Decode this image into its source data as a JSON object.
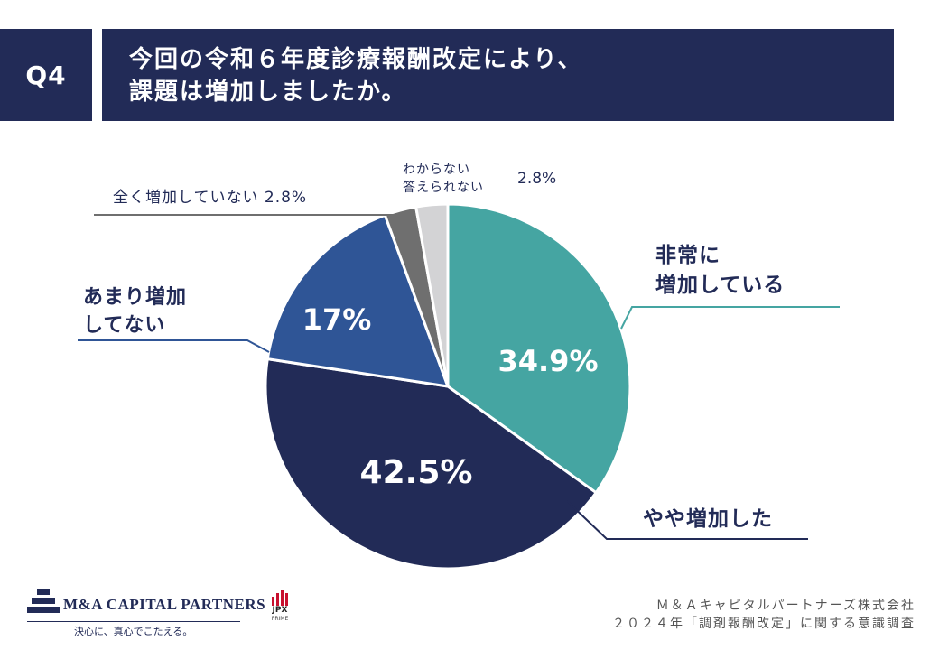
{
  "header": {
    "question_label": "Q4",
    "title_line1": "今回の令和６年度診療報酬改定により、",
    "title_line2": "課題は増加しましたか。"
  },
  "chart_data": {
    "type": "pie",
    "title": "今回の令和６年度診療報酬改定により、課題は増加しましたか。",
    "slices": [
      {
        "label": "非常に増加している",
        "label_lines": [
          "非常に",
          "増加している"
        ],
        "value": 34.9,
        "value_label": "34.9%",
        "color": "#45a5a2"
      },
      {
        "label": "やや増加した",
        "label_lines": [
          "やや増加した"
        ],
        "value": 42.5,
        "value_label": "42.5%",
        "color": "#222b57"
      },
      {
        "label": "あまり増加してない",
        "label_lines": [
          "あまり増加",
          "してない"
        ],
        "value": 17,
        "value_label": "17%",
        "color": "#2f5596"
      },
      {
        "label": "全く増加していない",
        "label_lines": [
          "全く増加していない 2.8%"
        ],
        "value": 2.8,
        "value_label": "2.8%",
        "color": "#6f6f6f"
      },
      {
        "label": "わからない答えられない",
        "label_lines": [
          "わからない",
          "答えられない"
        ],
        "value": 2.8,
        "value_label": "2.8%",
        "color": "#d3d3d5"
      }
    ]
  },
  "footer": {
    "company_line": "Ｍ＆Ａキャピタルパートナーズ株式会社",
    "survey_line": "２０２４年「調剤報酬改定」に関する意識調査",
    "logo_name": "M&A CAPITAL PARTNERS",
    "logo_tagline": "決心に、真心でこたえる。",
    "jpx_text": "JPX",
    "jpx_sub": "PRIME"
  }
}
